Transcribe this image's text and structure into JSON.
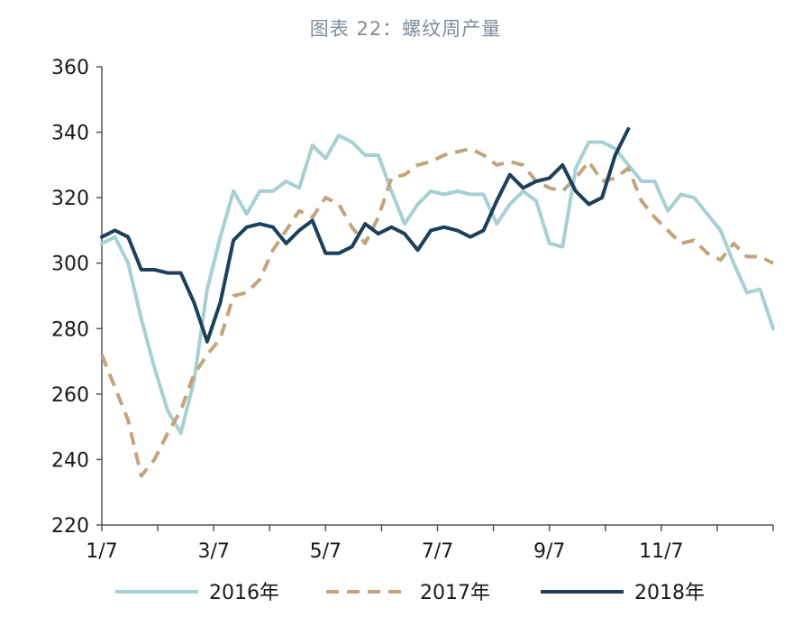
{
  "chart_data": {
    "type": "line",
    "title": "图表 22：螺纹周产量",
    "xlabel": "",
    "ylabel": "",
    "ylim": [
      220,
      360
    ],
    "y_ticks": [
      220,
      240,
      260,
      280,
      300,
      320,
      340,
      360
    ],
    "x_tick_labels": [
      "1/7",
      "3/7",
      "5/7",
      "7/7",
      "9/7",
      "11/7"
    ],
    "x_tick_weeks": [
      0,
      8.5,
      17,
      25.5,
      34,
      42.5
    ],
    "x_range_weeks": [
      0,
      51
    ],
    "grid": false,
    "legend_position": "bottom",
    "series": [
      {
        "name": "2016年",
        "color": "#a7d0d2",
        "style": "solid",
        "x": [
          0,
          1,
          2,
          3,
          4,
          5,
          6,
          7,
          8,
          9,
          10,
          11,
          12,
          13,
          14,
          15,
          16,
          17,
          18,
          19,
          20,
          21,
          22,
          23,
          24,
          25,
          26,
          27,
          28,
          29,
          30,
          31,
          32,
          33,
          34,
          35,
          36,
          37,
          38,
          39,
          40,
          41,
          42,
          43,
          44,
          45,
          46,
          47,
          48,
          49,
          50,
          51
        ],
        "y": [
          306,
          308,
          300,
          283,
          268,
          255,
          248,
          264,
          292,
          308,
          322,
          315,
          322,
          322,
          325,
          323,
          336,
          332,
          339,
          337,
          333,
          333,
          322,
          312,
          318,
          322,
          321,
          322,
          321,
          321,
          312,
          318,
          322,
          319,
          306,
          305,
          329,
          337,
          337,
          335,
          330,
          325,
          325,
          316,
          321,
          320,
          315,
          310,
          300,
          291,
          292,
          280
        ]
      },
      {
        "name": "2017年",
        "color": "#c2a47e",
        "style": "dashed",
        "x": [
          0,
          1,
          2,
          3,
          4,
          5,
          6,
          7,
          8,
          9,
          10,
          11,
          12,
          13,
          14,
          15,
          16,
          17,
          18,
          19,
          20,
          21,
          22,
          23,
          24,
          25,
          26,
          27,
          28,
          29,
          30,
          31,
          32,
          33,
          34,
          35,
          36,
          37,
          38,
          39,
          40,
          41,
          42,
          43,
          44,
          45,
          46,
          47,
          48,
          49,
          50,
          51
        ],
        "y": [
          272,
          262,
          252,
          235,
          240,
          248,
          255,
          266,
          272,
          277,
          290,
          291,
          295,
          304,
          310,
          316,
          314,
          320,
          318,
          311,
          306,
          314,
          326,
          327,
          330,
          331,
          333,
          334,
          335,
          333,
          330,
          331,
          330,
          325,
          323,
          322,
          326,
          331,
          325,
          326,
          329,
          319,
          314,
          310,
          306,
          307,
          303,
          301,
          306,
          302,
          302,
          300
        ]
      },
      {
        "name": "2018年",
        "color": "#1c3f5c",
        "style": "solid",
        "x": [
          0,
          1,
          2,
          3,
          4,
          5,
          6,
          7,
          8,
          9,
          10,
          11,
          12,
          13,
          14,
          15,
          16,
          17,
          18,
          19,
          20,
          21,
          22,
          23,
          24,
          25,
          26,
          27,
          28,
          29,
          30,
          31,
          32,
          33,
          34,
          35,
          36,
          37,
          38,
          39,
          40
        ],
        "y": [
          308,
          310,
          308,
          298,
          298,
          297,
          297,
          288,
          276,
          288,
          307,
          311,
          312,
          311,
          306,
          310,
          313,
          303,
          303,
          305,
          312,
          309,
          311,
          309,
          304,
          310,
          311,
          310,
          308,
          310,
          319,
          327,
          323,
          325,
          326,
          330,
          322,
          318,
          320,
          333,
          341
        ]
      }
    ]
  },
  "extra_points": {
    "note_free": true
  }
}
